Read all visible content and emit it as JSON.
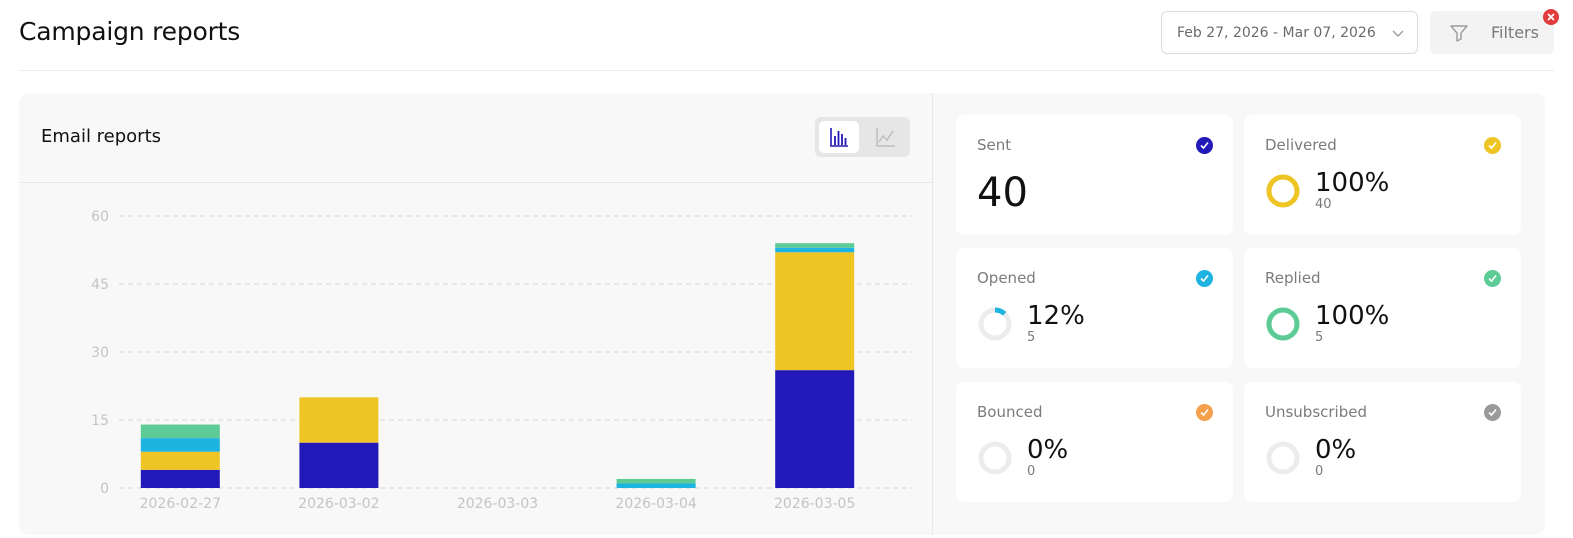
{
  "header": {
    "title": "Campaign reports",
    "date_range": "Feb 27, 2026 - Mar 07, 2026",
    "filters_label": "Filters"
  },
  "email_reports": {
    "title": "Email reports",
    "view_toggle": {
      "active": "bar-chart",
      "options": [
        "bar-chart",
        "line-chart"
      ]
    }
  },
  "colors": {
    "sent": "#2319b8",
    "delivered": "#eec524",
    "opened": "#1eb4e2",
    "replied": "#5ccb96",
    "bounced": "#f5a04c",
    "unsubscribed": "#9a9a9a"
  },
  "chart_data": {
    "type": "bar",
    "stacked": true,
    "categories": [
      "2026-02-27",
      "2026-03-02",
      "2026-03-03",
      "2026-03-04",
      "2026-03-05"
    ],
    "series": [
      {
        "key": "sent",
        "values": [
          4,
          10,
          0,
          0,
          26
        ]
      },
      {
        "key": "delivered",
        "values": [
          4,
          10,
          0,
          0,
          26
        ]
      },
      {
        "key": "opened",
        "values": [
          3,
          0,
          0,
          1,
          1
        ]
      },
      {
        "key": "replied",
        "values": [
          3,
          0,
          0,
          1,
          1
        ]
      }
    ],
    "yticks": [
      0,
      15,
      30,
      45,
      60
    ],
    "ylim": [
      0,
      60
    ],
    "grid": true,
    "grid_style": "dashed"
  },
  "stats": [
    {
      "key": "sent",
      "label": "Sent",
      "value": "40"
    },
    {
      "key": "delivered",
      "label": "Delivered",
      "percent": "100%",
      "count": "40",
      "fraction": 1.0
    },
    {
      "key": "opened",
      "label": "Opened",
      "percent": "12%",
      "count": "5",
      "fraction": 0.12
    },
    {
      "key": "replied",
      "label": "Replied",
      "percent": "100%",
      "count": "5",
      "fraction": 1.0
    },
    {
      "key": "bounced",
      "label": "Bounced",
      "percent": "0%",
      "count": "0",
      "fraction": 0
    },
    {
      "key": "unsubscribed",
      "label": "Unsubscribed",
      "percent": "0%",
      "count": "0",
      "fraction": 0
    }
  ]
}
